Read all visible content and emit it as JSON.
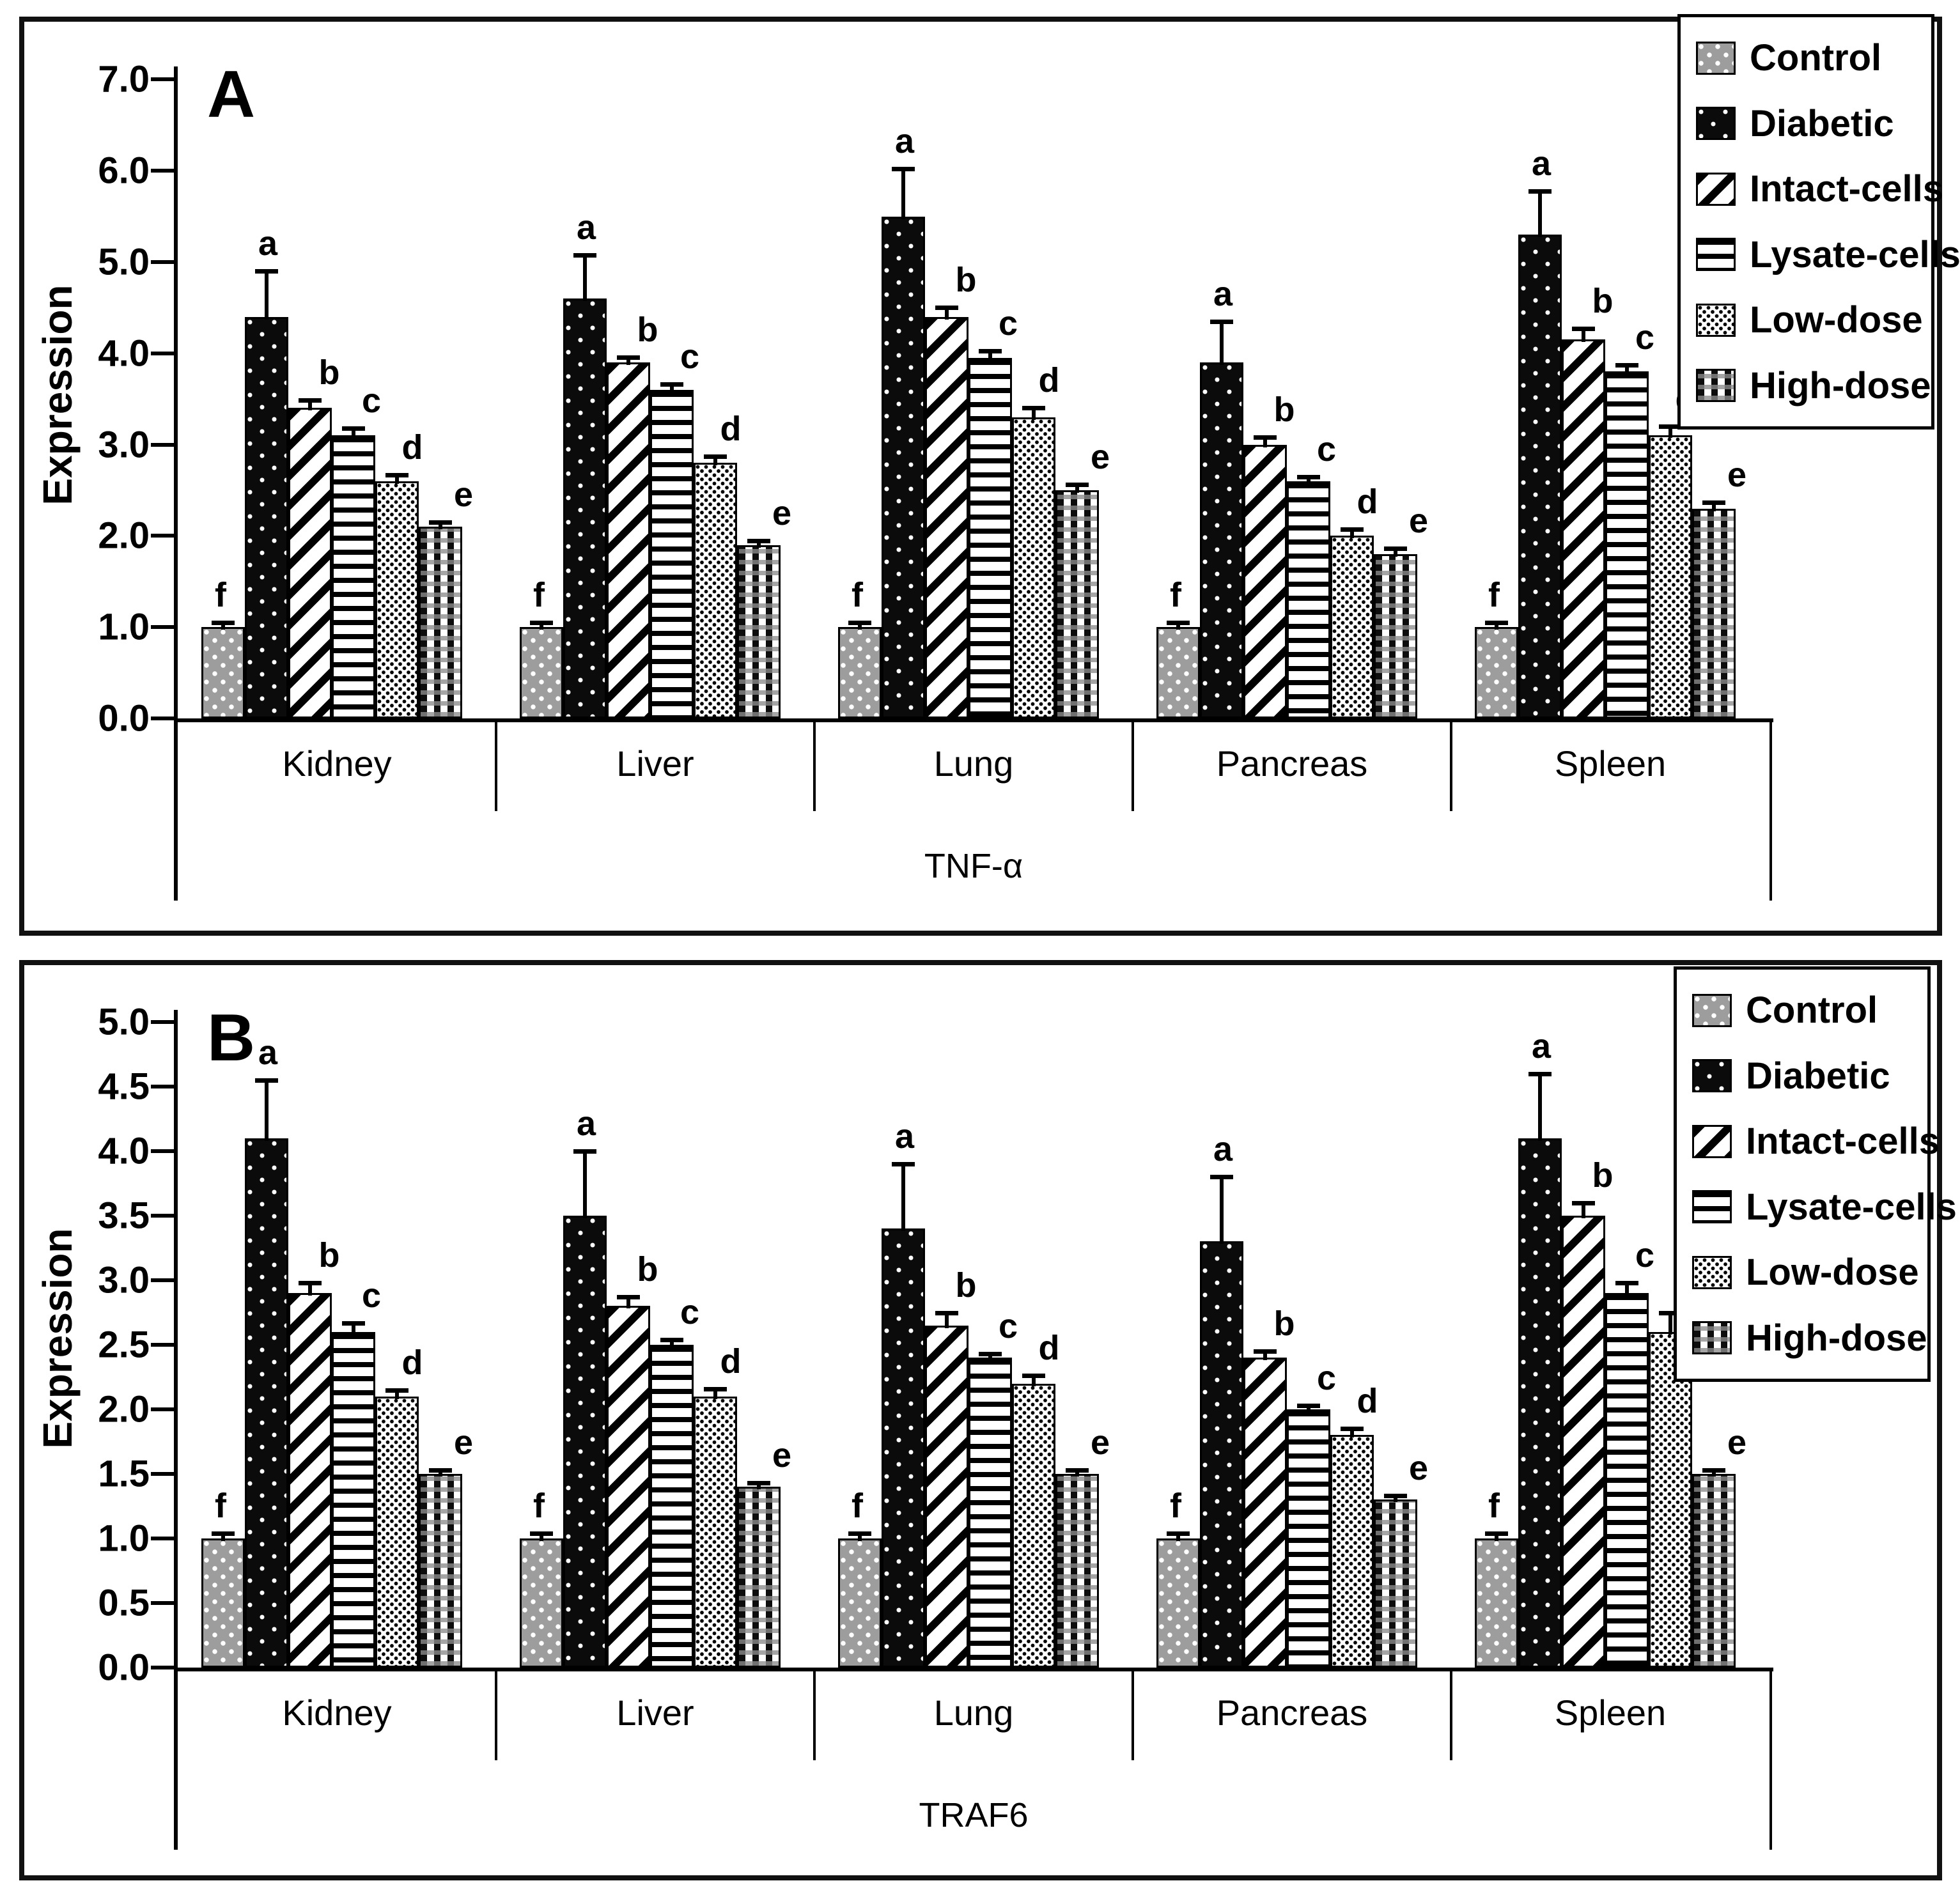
{
  "figure": {
    "description_visible_text_only": true,
    "panels": [
      {
        "letter": "A",
        "gene": "TNF-α"
      },
      {
        "letter": "B",
        "gene": "TRAF6"
      }
    ]
  },
  "legend": {
    "position": "top-right",
    "items": [
      "Control",
      "Diabetic",
      "Intact-cells",
      "Lysate-cells",
      "Low-dose",
      "High-dose"
    ]
  },
  "chart_data": [
    {
      "type": "bar",
      "panel_label": "A",
      "title": "",
      "xlabel": "TNF-α",
      "ylabel": "Expression",
      "ylim": [
        0,
        7
      ],
      "ytick_step": 1.0,
      "ytick_labels": [
        "0.0",
        "1.0",
        "2.0",
        "3.0",
        "4.0",
        "5.0",
        "6.0",
        "7.0"
      ],
      "grid": false,
      "legend_position": "top-right",
      "categories": [
        "Kidney",
        "Liver",
        "Lung",
        "Pancreas",
        "Spleen"
      ],
      "sig_letters": [
        "f",
        "a",
        "b",
        "c",
        "d",
        "e"
      ],
      "series": [
        {
          "name": "Control",
          "pattern": "control",
          "values": [
            1.0,
            1.0,
            1.0,
            1.0,
            1.0
          ],
          "errors": [
            0.05,
            0.05,
            0.05,
            0.05,
            0.05
          ]
        },
        {
          "name": "Diabetic",
          "pattern": "diabetic",
          "values": [
            4.4,
            4.6,
            5.5,
            3.9,
            5.3
          ],
          "errors": [
            0.5,
            0.48,
            0.52,
            0.45,
            0.48
          ]
        },
        {
          "name": "Intact-cells",
          "pattern": "intact",
          "values": [
            3.4,
            3.9,
            4.4,
            3.0,
            4.15
          ],
          "errors": [
            0.09,
            0.06,
            0.1,
            0.08,
            0.12
          ]
        },
        {
          "name": "Lysate-cells",
          "pattern": "lysate",
          "values": [
            3.1,
            3.6,
            3.95,
            2.6,
            3.8
          ],
          "errors": [
            0.08,
            0.06,
            0.08,
            0.05,
            0.07
          ]
        },
        {
          "name": "Low-dose",
          "pattern": "lowdose",
          "values": [
            2.6,
            2.8,
            3.3,
            2.0,
            3.1
          ],
          "errors": [
            0.07,
            0.07,
            0.1,
            0.07,
            0.1
          ]
        },
        {
          "name": "High-dose",
          "pattern": "highdose",
          "values": [
            2.1,
            1.9,
            2.5,
            1.8,
            2.3
          ],
          "errors": [
            0.05,
            0.05,
            0.06,
            0.06,
            0.07
          ]
        }
      ]
    },
    {
      "type": "bar",
      "panel_label": "B",
      "title": "",
      "xlabel": "TRAF6",
      "ylabel": "Expression",
      "ylim": [
        0,
        5
      ],
      "ytick_step": 0.5,
      "ytick_labels": [
        "0.0",
        "0.5",
        "1.0",
        "1.5",
        "2.0",
        "2.5",
        "3.0",
        "3.5",
        "4.0",
        "4.5",
        "5.0"
      ],
      "grid": false,
      "legend_position": "top-right",
      "categories": [
        "Kidney",
        "Liver",
        "Lung",
        "Pancreas",
        "Spleen"
      ],
      "sig_letters": [
        "f",
        "a",
        "b",
        "c",
        "d",
        "e"
      ],
      "series": [
        {
          "name": "Control",
          "pattern": "control",
          "values": [
            1.0,
            1.0,
            1.0,
            1.0,
            1.0
          ],
          "errors": [
            0.04,
            0.04,
            0.04,
            0.04,
            0.04
          ]
        },
        {
          "name": "Diabetic",
          "pattern": "diabetic",
          "values": [
            4.1,
            3.5,
            3.4,
            3.3,
            4.1
          ],
          "errors": [
            0.45,
            0.5,
            0.5,
            0.5,
            0.5
          ]
        },
        {
          "name": "Intact-cells",
          "pattern": "intact",
          "values": [
            2.9,
            2.8,
            2.65,
            2.4,
            3.5
          ],
          "errors": [
            0.08,
            0.07,
            0.1,
            0.05,
            0.1
          ]
        },
        {
          "name": "Lysate-cells",
          "pattern": "lysate",
          "values": [
            2.6,
            2.5,
            2.4,
            2.0,
            2.9
          ],
          "errors": [
            0.07,
            0.04,
            0.03,
            0.03,
            0.08
          ]
        },
        {
          "name": "Low-dose",
          "pattern": "lowdose",
          "values": [
            2.1,
            2.1,
            2.2,
            1.8,
            2.6
          ],
          "errors": [
            0.05,
            0.06,
            0.06,
            0.05,
            0.15
          ]
        },
        {
          "name": "High-dose",
          "pattern": "highdose",
          "values": [
            1.5,
            1.4,
            1.5,
            1.3,
            1.5
          ],
          "errors": [
            0.03,
            0.03,
            0.03,
            0.03,
            0.03
          ]
        }
      ]
    }
  ]
}
